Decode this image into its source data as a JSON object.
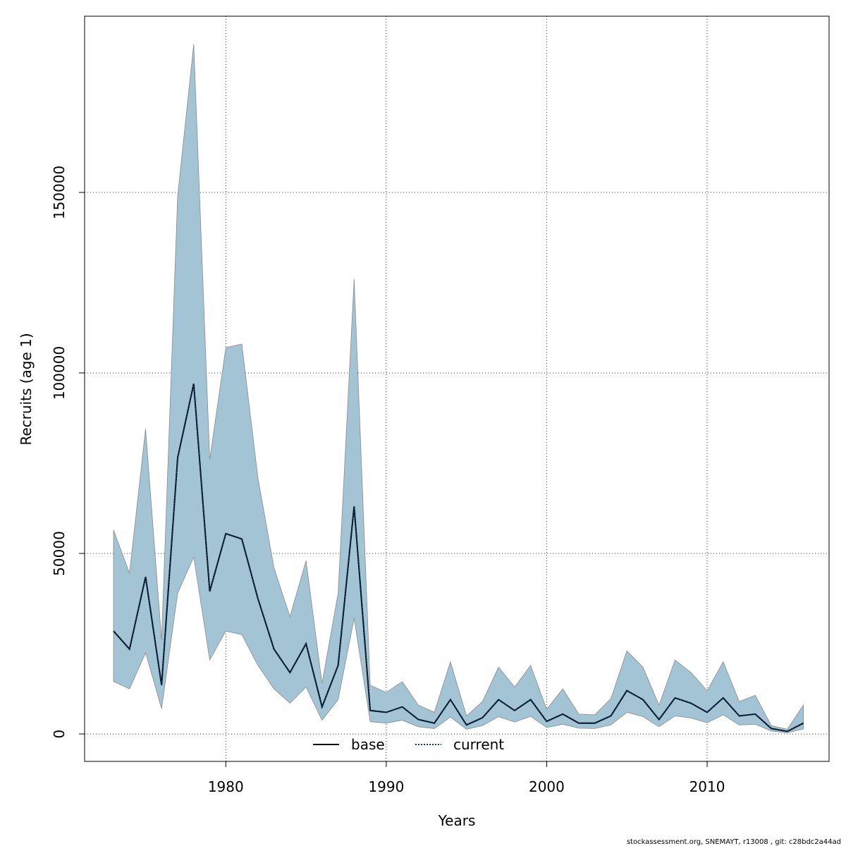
{
  "chart_data": {
    "type": "line",
    "xlabel": "Years",
    "ylabel": "Recruits (age 1)",
    "xlim": [
      1971.2,
      2017.6
    ],
    "ylim": [
      -7600,
      198800
    ],
    "x_ticks": [
      1980,
      1990,
      2000,
      2010
    ],
    "y_ticks": [
      0,
      50000,
      100000,
      150000
    ],
    "x_tick_labels": [
      "1980",
      "1990",
      "2000",
      "2010"
    ],
    "y_tick_labels": [
      "0",
      "50000",
      "100000",
      "150000"
    ],
    "grid": true,
    "legend_position": "bottom",
    "colors": {
      "band": "#a3c4d5",
      "band_edge": "#8a8a8a",
      "base": "#000000",
      "current": "#003a66"
    },
    "years": [
      1973,
      1974,
      1975,
      1976,
      1977,
      1978,
      1979,
      1980,
      1981,
      1982,
      1983,
      1984,
      1985,
      1986,
      1987,
      1988,
      1989,
      1990,
      1991,
      1992,
      1993,
      1994,
      1995,
      1996,
      1997,
      1998,
      1999,
      2000,
      2001,
      2002,
      2003,
      2004,
      2005,
      2006,
      2007,
      2008,
      2009,
      2010,
      2011,
      2012,
      2013,
      2014,
      2015,
      2016
    ],
    "series": [
      {
        "name": "base",
        "style": "solid",
        "values": [
          28500,
          23500,
          43500,
          13500,
          76500,
          97000,
          39500,
          55500,
          54000,
          37500,
          23500,
          17000,
          25000,
          7500,
          19000,
          63000,
          6500,
          6000,
          7500,
          4000,
          3000,
          9500,
          2500,
          4500,
          9500,
          6500,
          9500,
          3500,
          5500,
          3000,
          3000,
          5000,
          12000,
          9500,
          4000,
          10000,
          8500,
          6000,
          10000,
          5000,
          5500,
          1500,
          700,
          3000
        ],
        "lower": [
          14500,
          12500,
          22500,
          7000,
          39000,
          49000,
          20500,
          28500,
          27500,
          19000,
          12500,
          8500,
          13000,
          3800,
          9500,
          32000,
          3400,
          3000,
          3800,
          2000,
          1500,
          4700,
          1300,
          2300,
          4800,
          3300,
          4900,
          1800,
          2700,
          1600,
          1500,
          2500,
          6000,
          4800,
          2000,
          5000,
          4400,
          3100,
          5300,
          2500,
          2700,
          800,
          300,
          1400
        ],
        "upper": [
          56500,
          44500,
          84500,
          26000,
          149000,
          191000,
          76000,
          107000,
          108000,
          71000,
          46000,
          32500,
          48000,
          14000,
          39000,
          126000,
          13500,
          11500,
          14500,
          8000,
          6000,
          20000,
          5000,
          9000,
          18500,
          13000,
          19000,
          6800,
          12500,
          5500,
          5300,
          9800,
          23000,
          18500,
          8000,
          20500,
          17000,
          12000,
          20000,
          9000,
          10700,
          2300,
          1300,
          8000
        ]
      },
      {
        "name": "current",
        "style": "dotted",
        "values": [
          28500,
          23500,
          43500,
          13500,
          76500,
          97000,
          39500,
          55500,
          54000,
          37500,
          23500,
          17000,
          25000,
          7500,
          19000,
          63000,
          6500,
          6000,
          7500,
          4000,
          3000,
          9500,
          2500,
          4500,
          9500,
          6500,
          9500,
          3500,
          5500,
          3000,
          3000,
          5000,
          12000,
          9500,
          4000,
          10000,
          8500,
          6000,
          10000,
          5000,
          5500,
          1500,
          700,
          3000
        ]
      }
    ],
    "footer": "stockassessment.org, SNEMAYT, r13008 , git: c28bdc2a44ad"
  }
}
